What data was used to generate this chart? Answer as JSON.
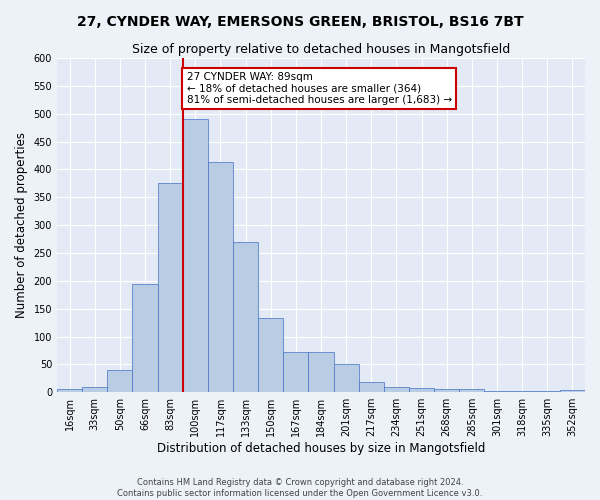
{
  "title_line1": "27, CYNDER WAY, EMERSONS GREEN, BRISTOL, BS16 7BT",
  "title_line2": "Size of property relative to detached houses in Mangotsfield",
  "xlabel": "Distribution of detached houses by size in Mangotsfield",
  "ylabel": "Number of detached properties",
  "categories": [
    "16sqm",
    "33sqm",
    "50sqm",
    "66sqm",
    "83sqm",
    "100sqm",
    "117sqm",
    "133sqm",
    "150sqm",
    "167sqm",
    "184sqm",
    "201sqm",
    "217sqm",
    "234sqm",
    "251sqm",
    "268sqm",
    "285sqm",
    "301sqm",
    "318sqm",
    "335sqm",
    "352sqm"
  ],
  "values": [
    5,
    10,
    40,
    195,
    375,
    490,
    413,
    270,
    133,
    72,
    72,
    50,
    18,
    10,
    8,
    5,
    5,
    3,
    2,
    2,
    4
  ],
  "bar_color": "#b8cce4",
  "bar_edge_color": "#4472c4",
  "vline_color": "#cc0000",
  "vline_pos": 4.5,
  "annotation_text": "27 CYNDER WAY: 89sqm\n← 18% of detached houses are smaller (364)\n81% of semi-detached houses are larger (1,683) →",
  "annotation_box_color": "#ffffff",
  "annotation_box_edge": "#cc0000",
  "ylim": [
    0,
    600
  ],
  "yticks": [
    0,
    50,
    100,
    150,
    200,
    250,
    300,
    350,
    400,
    450,
    500,
    550,
    600
  ],
  "footnote1": "Contains HM Land Registry data © Crown copyright and database right 2024.",
  "footnote2": "Contains public sector information licensed under the Open Government Licence v3.0.",
  "background_color": "#edf1f8",
  "plot_background": "#e4eaf5",
  "grid_color": "#ffffff",
  "title_fontsize": 10,
  "subtitle_fontsize": 9,
  "axis_label_fontsize": 8.5,
  "tick_fontsize": 7,
  "annot_fontsize": 7.5,
  "footnote_fontsize": 6
}
